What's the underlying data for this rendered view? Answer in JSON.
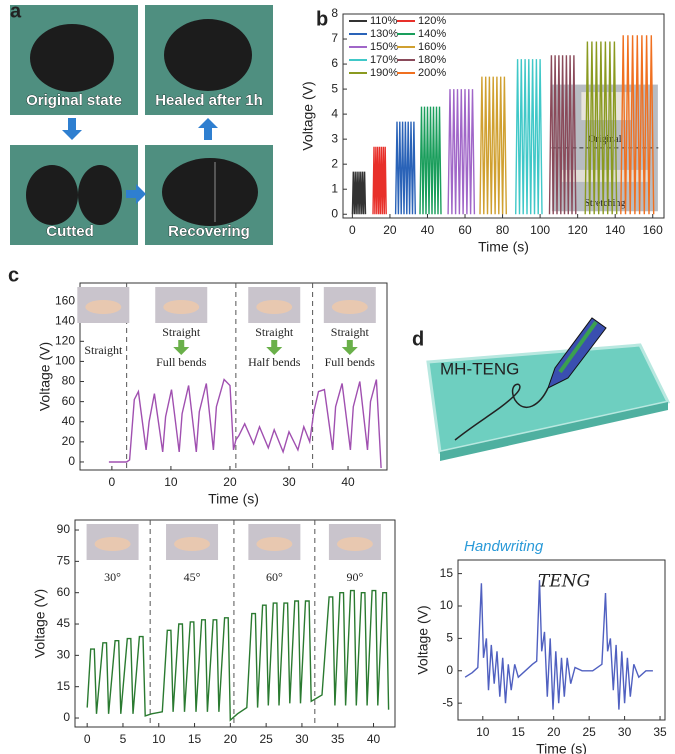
{
  "panel_labels": [
    "a",
    "b",
    "c",
    "d"
  ],
  "photo_captions": [
    "Original state",
    "Healed after 1h",
    "Cutted",
    "Recovering"
  ],
  "illustration_label": "MH-TENG",
  "chart_data": [
    {
      "type": "line",
      "xlabel": "Time (s)",
      "ylabel": "Voltage (V)",
      "xlim": [
        -5,
        166
      ],
      "ylim": [
        -0.15,
        8
      ],
      "xticks": [
        0,
        20,
        40,
        60,
        80,
        100,
        120,
        140,
        160
      ],
      "yticks": [
        0,
        1,
        2,
        3,
        4,
        5,
        6,
        7,
        8
      ],
      "inset_labels": [
        "Original",
        "Stretching"
      ],
      "series": [
        {
          "name": "110%",
          "color": "#333333",
          "x": [
            0,
            0.5,
            1,
            1.5,
            2,
            2.5,
            3,
            3.5,
            4,
            4.5,
            5,
            5.5,
            6,
            6.5,
            7
          ],
          "values": [
            0,
            1.7,
            0,
            1.7,
            0,
            1.7,
            0,
            1.7,
            0,
            1.7,
            0,
            1.7,
            0,
            1.7,
            0
          ]
        },
        {
          "name": "120%",
          "color": "#e8302a",
          "x": [
            11,
            11.5,
            12,
            12.5,
            13,
            13.5,
            14,
            14.5,
            15,
            15.5,
            16,
            16.5,
            17,
            17.5,
            18
          ],
          "values": [
            0,
            2.7,
            0,
            2.7,
            0,
            2.7,
            0,
            2.7,
            0,
            2.7,
            0,
            2.7,
            0,
            2.7,
            0
          ]
        },
        {
          "name": "130%",
          "color": "#2a63b8",
          "x": [
            23,
            23.75,
            24.5,
            25.25,
            26,
            26.75,
            27.5,
            28.25,
            29,
            29.75,
            30.5,
            31.25,
            32,
            32.75,
            33.5
          ],
          "values": [
            0,
            3.7,
            0,
            3.7,
            0,
            3.7,
            0,
            3.7,
            0,
            3.7,
            0,
            3.7,
            0,
            3.7,
            0
          ]
        },
        {
          "name": "140%",
          "color": "#1a9e5c",
          "x": [
            36,
            36.8,
            37.6,
            38.4,
            39.2,
            40,
            40.8,
            41.6,
            42.4,
            43.2,
            44,
            44.8,
            45.6,
            46.4,
            47.2
          ],
          "values": [
            0,
            4.3,
            0,
            4.3,
            0,
            4.3,
            0,
            4.3,
            0,
            4.3,
            0,
            4.3,
            0,
            4.3,
            0
          ]
        },
        {
          "name": "150%",
          "color": "#a066c8",
          "x": [
            51,
            52,
            53,
            54,
            55,
            56,
            57,
            58,
            59,
            60,
            61,
            62,
            63,
            64,
            65
          ],
          "values": [
            0,
            5,
            0,
            5,
            0,
            5,
            0,
            5,
            0,
            5,
            0,
            5,
            0,
            5,
            0
          ]
        },
        {
          "name": "160%",
          "color": "#d0a030",
          "x": [
            68,
            69,
            70,
            71,
            72,
            73,
            74,
            75,
            76,
            77,
            78,
            79,
            80,
            81,
            82
          ],
          "values": [
            0,
            5.5,
            0,
            5.5,
            0,
            5.5,
            0,
            5.5,
            0,
            5.5,
            0,
            5.5,
            0,
            5.5,
            0
          ]
        },
        {
          "name": "170%",
          "color": "#40c8c8",
          "x": [
            87,
            88,
            89,
            90,
            91,
            92,
            93,
            94,
            95,
            96,
            97,
            98,
            99,
            100,
            101
          ],
          "values": [
            0,
            6.2,
            0,
            6.2,
            0,
            6.2,
            0,
            6.2,
            0,
            6.2,
            0,
            6.2,
            0,
            6.2,
            0
          ]
        },
        {
          "name": "180%",
          "color": "#8a4a5a",
          "x": [
            105,
            106,
            107,
            108,
            109,
            110,
            111,
            112,
            113,
            114,
            115,
            116,
            117,
            118,
            119
          ],
          "values": [
            0,
            6.35,
            0,
            6.35,
            0,
            6.35,
            0,
            6.35,
            0,
            6.35,
            0,
            6.35,
            0,
            6.35,
            0
          ]
        },
        {
          "name": "190%",
          "color": "#8a9a20",
          "x": [
            124,
            125.2,
            126.4,
            127.6,
            128.8,
            130,
            131.2,
            132.4,
            133.6,
            134.8,
            136,
            137.2,
            138.4,
            139.6,
            140.8
          ],
          "values": [
            0,
            6.9,
            0,
            6.9,
            0,
            6.9,
            0,
            6.9,
            0,
            6.9,
            0,
            6.9,
            0,
            6.9,
            0
          ]
        },
        {
          "name": "200%",
          "color": "#f07020",
          "x": [
            143,
            144.25,
            145.5,
            146.75,
            148,
            149.25,
            150.5,
            151.75,
            153,
            154.25,
            155.5,
            156.75,
            158,
            159.25,
            160.5
          ],
          "values": [
            0,
            7.15,
            0,
            7.15,
            0,
            7.15,
            0,
            7.15,
            0,
            7.15,
            0,
            7.15,
            0,
            7.15,
            0
          ]
        }
      ]
    },
    {
      "type": "line",
      "xlabel": "Time (s)",
      "ylabel": "Voltage (V)",
      "xlim": [
        -5.4,
        46.6
      ],
      "ylim": [
        -8,
        178
      ],
      "xticks": [
        0,
        10,
        20,
        30,
        40
      ],
      "yticks": [
        0,
        20,
        40,
        60,
        80,
        100,
        120,
        140,
        160
      ],
      "dividers": [
        2.5,
        21,
        34
      ],
      "annotations": [
        [
          "Straight"
        ],
        [
          "Straight",
          "Full bends"
        ],
        [
          "Straight",
          "Half bends"
        ],
        [
          "Straight",
          "Full bends"
        ]
      ],
      "series": [
        {
          "color": "#a050b0",
          "x": [
            -0.5,
            2.5,
            3,
            3.8,
            4.5,
            5.8,
            6.3,
            7.2,
            8.6,
            9.1,
            10.1,
            11.4,
            11.9,
            13,
            14.3,
            14.8,
            16,
            17.2,
            17.7,
            19,
            20,
            20.6,
            21,
            21.5,
            22.5,
            24,
            25,
            26.5,
            27.5,
            29,
            30,
            31.5,
            32.5,
            33.5,
            34.2,
            35,
            36,
            37.4,
            37.9,
            39,
            40.4,
            40.9,
            42,
            43.3,
            43.8,
            44.8,
            45.6
          ],
          "values": [
            0,
            0,
            2,
            62,
            70,
            12,
            40,
            68,
            10,
            45,
            72,
            10,
            48,
            76,
            10,
            50,
            78,
            12,
            55,
            82,
            76,
            12,
            22,
            26,
            38,
            18,
            35,
            14,
            32,
            10,
            30,
            12,
            35,
            20,
            50,
            70,
            72,
            12,
            55,
            78,
            12,
            55,
            80,
            12,
            60,
            82,
            -6
          ]
        }
      ]
    },
    {
      "type": "line",
      "ylabel": "Voltage (V)",
      "xlim": [
        -1.7,
        43
      ],
      "ylim": [
        -4.3,
        94.8
      ],
      "xticks": [
        0,
        5,
        10,
        15,
        20,
        25,
        30,
        35,
        40
      ],
      "yticks": [
        0,
        15,
        30,
        45,
        60,
        75,
        90
      ],
      "dividers": [
        8.8,
        20.5,
        31.8
      ],
      "annotations": [
        "30°",
        "45°",
        "60°",
        "90°"
      ],
      "series": [
        {
          "color": "#2a7a30",
          "x": [
            0,
            0.5,
            1,
            1.3,
            2.2,
            2.7,
            3,
            3.9,
            4.4,
            4.7,
            5.6,
            6.1,
            6.4,
            7.3,
            7.8,
            8.1,
            9,
            10.5,
            11.2,
            11.7,
            12,
            12.8,
            13.3,
            13.6,
            14.4,
            14.9,
            15.2,
            16,
            16.5,
            16.8,
            17.6,
            18.1,
            18.4,
            19.2,
            19.7,
            20,
            21,
            22.3,
            23,
            23.5,
            23.8,
            24.5,
            25,
            25.3,
            26,
            26.5,
            26.8,
            27.5,
            28,
            28.3,
            29,
            29.5,
            29.8,
            30.5,
            31,
            31.3,
            32.8,
            33.8,
            34.3,
            34.6,
            35.3,
            35.8,
            36.1,
            36.8,
            37.3,
            37.6,
            38.3,
            38.8,
            39.1,
            39.8,
            40.3,
            40.6,
            41.3,
            41.8,
            42.1
          ],
          "values": [
            5,
            33,
            33,
            2,
            36,
            36,
            2,
            37,
            37,
            2,
            38,
            38,
            2,
            39,
            39,
            1,
            2,
            3,
            42,
            42,
            3,
            45,
            45,
            3,
            46,
            46,
            3,
            47,
            47,
            3,
            47,
            47,
            3,
            48,
            48,
            -1,
            2,
            5,
            50,
            50,
            5,
            54,
            54,
            6,
            55,
            55,
            6,
            55,
            55,
            7,
            56,
            56,
            7,
            56,
            56,
            8,
            11,
            58,
            58,
            6,
            60,
            60,
            6,
            61,
            61,
            6,
            60,
            60,
            6,
            61,
            61,
            6,
            60,
            60,
            4
          ]
        }
      ]
    },
    {
      "type": "line",
      "xlabel": "Time (s)",
      "ylabel": "Voltage (V)",
      "xlim": [
        6.5,
        35.7
      ],
      "ylim": [
        -7.6,
        17.1
      ],
      "xticks": [
        10,
        15,
        20,
        25,
        30,
        35
      ],
      "yticks": [
        -5,
        0,
        5,
        10,
        15
      ],
      "annotations": [
        "Handwriting",
        "TENG"
      ],
      "series": [
        {
          "color": "#5060c0",
          "x": [
            7.5,
            8.5,
            9.3,
            9.8,
            10.1,
            10.5,
            10.8,
            11.2,
            11.6,
            12,
            12.4,
            12.8,
            13.2,
            13.6,
            14,
            14.5,
            15,
            16,
            17,
            17.6,
            18,
            18.3,
            18.7,
            19.1,
            19.5,
            19.9,
            20.3,
            20.7,
            21.1,
            21.5,
            21.9,
            22.4,
            23,
            24,
            25.5,
            26.8,
            27.3,
            27.6,
            28,
            28.4,
            28.8,
            29.2,
            29.6,
            30,
            30.4,
            30.8,
            31.3,
            32,
            33,
            34
          ],
          "values": [
            -1,
            -0.3,
            0.5,
            13.5,
            2,
            5,
            -3,
            4,
            -2,
            3,
            -4,
            2,
            -5,
            1,
            -3,
            1,
            -1,
            0,
            1,
            1.5,
            14,
            3,
            6,
            -4,
            5,
            -6,
            3,
            -5,
            2,
            -4,
            2,
            -2,
            0.5,
            0,
            0,
            1,
            12,
            3,
            5,
            -3,
            4,
            -6,
            3,
            -5,
            2,
            -4,
            1,
            -1,
            0,
            0
          ]
        }
      ]
    }
  ]
}
